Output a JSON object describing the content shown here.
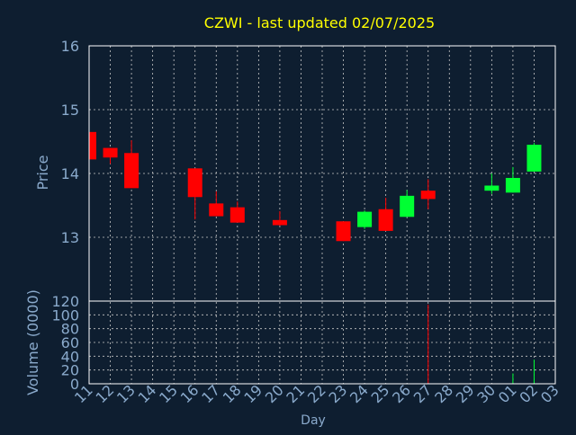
{
  "chart_data": {
    "type": "candlestick",
    "title": "CZWI - last updated 02/07/2025",
    "ylabel": "Price",
    "volume_label": "Volume (0000)",
    "xlabel": "Day",
    "price_ylim": [
      12.0,
      16.0
    ],
    "price_ticks": [
      "16",
      "15",
      "14",
      "13"
    ],
    "volume_ylim": [
      0,
      120
    ],
    "volume_ticks": [
      "120",
      "100",
      "80",
      "60",
      "40",
      "20",
      "0"
    ],
    "grid": true,
    "x_ticks": [
      "11",
      "12",
      "13",
      "14",
      "15",
      "16",
      "17",
      "18",
      "19",
      "20",
      "21",
      "22",
      "23",
      "24",
      "25",
      "26",
      "27",
      "28",
      "29",
      "30",
      "01",
      "02",
      "03"
    ],
    "colors": {
      "background": "#0e1e30",
      "plot_border": "#ffffff",
      "grid": "#c8c8c8",
      "title": "#ffff00",
      "labels": "#8aaacc",
      "up": "#00ff33",
      "down": "#ff0000"
    },
    "candles": [
      {
        "day": "11",
        "open": 14.65,
        "high": 14.65,
        "low": 14.22,
        "close": 14.22,
        "volume": 0
      },
      {
        "day": "12",
        "open": 14.4,
        "high": 14.4,
        "low": 14.15,
        "close": 14.25,
        "volume": 0
      },
      {
        "day": "13",
        "open": 14.32,
        "high": 14.52,
        "low": 13.77,
        "close": 13.77,
        "volume": 0
      },
      {
        "day": "16",
        "open": 14.08,
        "high": 14.08,
        "low": 13.28,
        "close": 13.63,
        "volume": 0
      },
      {
        "day": "17",
        "open": 13.53,
        "high": 13.72,
        "low": 13.33,
        "close": 13.33,
        "volume": 0
      },
      {
        "day": "18",
        "open": 13.47,
        "high": 13.56,
        "low": 13.23,
        "close": 13.23,
        "volume": 0
      },
      {
        "day": "20",
        "open": 13.27,
        "high": 13.41,
        "low": 13.18,
        "close": 13.19,
        "volume": 0
      },
      {
        "day": "23",
        "open": 13.25,
        "high": 13.25,
        "low": 12.94,
        "close": 12.94,
        "volume": 0
      },
      {
        "day": "24",
        "open": 13.16,
        "high": 13.42,
        "low": 13.13,
        "close": 13.4,
        "volume": 0
      },
      {
        "day": "25",
        "open": 13.44,
        "high": 13.62,
        "low": 13.1,
        "close": 13.1,
        "volume": 0
      },
      {
        "day": "26",
        "open": 13.32,
        "high": 13.74,
        "low": 13.32,
        "close": 13.65,
        "volume": 0
      },
      {
        "day": "27",
        "open": 13.73,
        "high": 13.91,
        "low": 13.44,
        "close": 13.6,
        "volume": 115
      },
      {
        "day": "30",
        "open": 13.73,
        "high": 14.0,
        "low": 13.68,
        "close": 13.81,
        "volume": 0
      },
      {
        "day": "01",
        "open": 13.7,
        "high": 14.1,
        "low": 13.7,
        "close": 13.93,
        "volume": 15
      },
      {
        "day": "02",
        "open": 14.03,
        "high": 14.48,
        "low": 14.03,
        "close": 14.45,
        "volume": 35
      }
    ]
  }
}
